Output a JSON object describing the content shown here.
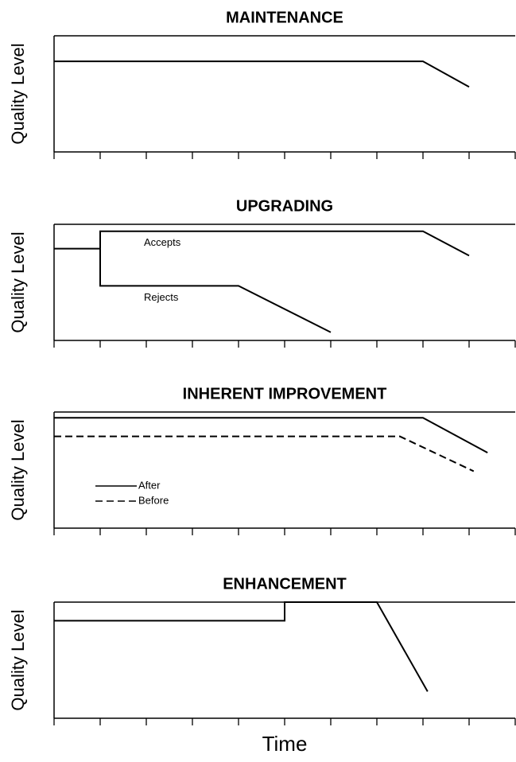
{
  "chart_data": [
    {
      "type": "line",
      "title": "MAINTENANCE",
      "ylabel": "Quality Level",
      "xlim": [
        0,
        10
      ],
      "xticks": [
        0,
        1,
        2,
        3,
        4,
        5,
        6,
        7,
        8,
        9,
        10
      ],
      "ylim": [
        0,
        10
      ],
      "series": [
        {
          "name": null,
          "color": "#000000",
          "linestyle": "solid",
          "x": [
            0,
            8,
            9
          ],
          "values": [
            7.8,
            7.8,
            5.6
          ]
        }
      ]
    },
    {
      "type": "line",
      "title": "UPGRADING",
      "ylabel": "Quality Level",
      "legend": "inline",
      "xlim": [
        0,
        10
      ],
      "xticks": [
        0,
        1,
        2,
        3,
        4,
        5,
        6,
        7,
        8,
        9,
        10
      ],
      "ylim": [
        0,
        10
      ],
      "series": [
        {
          "name": "Accepts",
          "color": "#000000",
          "linestyle": "solid",
          "x": [
            0,
            1,
            1,
            8,
            9
          ],
          "values": [
            7.9,
            7.9,
            9.4,
            9.4,
            7.3
          ]
        },
        {
          "name": "Rejects",
          "color": "#000000",
          "linestyle": "solid",
          "x": [
            1,
            1,
            4,
            6
          ],
          "values": [
            7.9,
            4.7,
            4.7,
            0.7
          ]
        }
      ]
    },
    {
      "type": "line",
      "title": "INHERENT IMPROVEMENT",
      "ylabel": "Quality Level",
      "legend": "lower left",
      "xlim": [
        0,
        10
      ],
      "xticks": [
        0,
        1,
        2,
        3,
        4,
        5,
        6,
        7,
        8,
        9,
        10
      ],
      "ylim": [
        0,
        10
      ],
      "series": [
        {
          "name": "After",
          "color": "#000000",
          "linestyle": "solid",
          "x": [
            0,
            8,
            9.4
          ],
          "values": [
            9.5,
            9.5,
            6.5
          ]
        },
        {
          "name": "Before",
          "color": "#000000",
          "linestyle": "dashed",
          "x": [
            0,
            7.5,
            9.1
          ],
          "values": [
            7.9,
            7.9,
            4.9
          ]
        }
      ]
    },
    {
      "type": "line",
      "title": "ENHANCEMENT",
      "ylabel": "Quality Level",
      "xlabel": "Time",
      "xlim": [
        0,
        10
      ],
      "xticks": [
        0,
        1,
        2,
        3,
        4,
        5,
        6,
        7,
        8,
        9,
        10
      ],
      "ylim": [
        0,
        10
      ],
      "series": [
        {
          "name": null,
          "color": "#000000",
          "linestyle": "solid",
          "x": [
            0,
            5,
            5,
            7,
            8.1
          ],
          "values": [
            8.4,
            8.4,
            10,
            10,
            2.3
          ]
        }
      ]
    }
  ]
}
